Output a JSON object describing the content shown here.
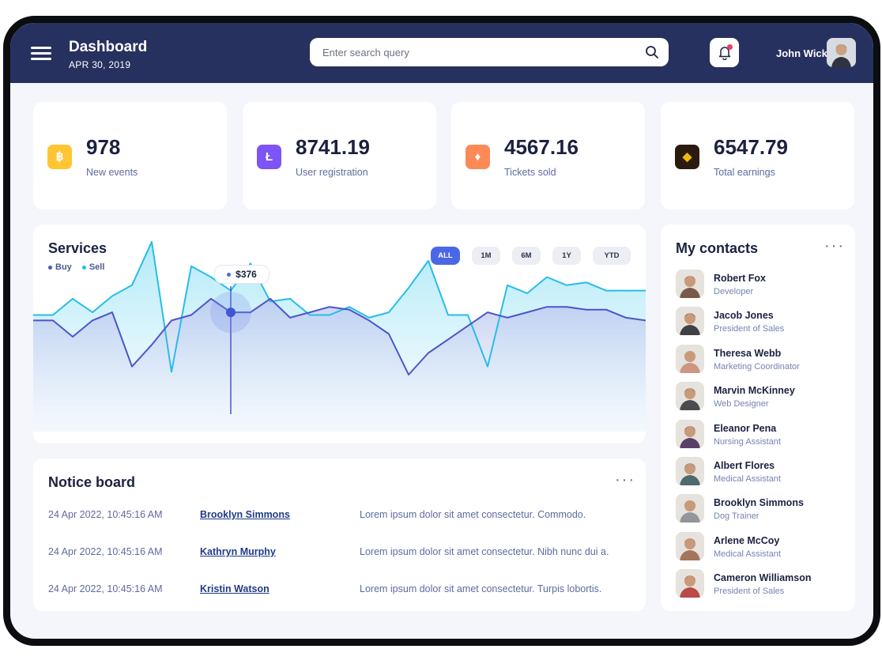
{
  "header": {
    "title": "Dashboard",
    "date": "APR 30, 2019",
    "search_placeholder": "Enter search query",
    "user_name": "John Wick",
    "colors": {
      "bar": "#27315f",
      "notification_dot": "#ef3a6a"
    }
  },
  "stats": [
    {
      "value": "978",
      "label": "New events",
      "icon": "bitcoin-icon",
      "color": "#ffc533",
      "glyph": "฿"
    },
    {
      "value": "8741.19",
      "label": "User registration",
      "icon": "litecoin-icon",
      "color": "#7d54f5",
      "glyph": "Ł"
    },
    {
      "value": "4567.16",
      "label": "Tickets sold",
      "icon": "ethereum-icon",
      "color": "#fb8a57",
      "glyph": "♦"
    },
    {
      "value": "6547.79",
      "label": "Total earnings",
      "icon": "binance-icon",
      "color": "#2b1b0e",
      "glyph": "◆"
    }
  ],
  "services": {
    "title": "Services",
    "legend": [
      {
        "label": "Buy",
        "color": "#4c55c7"
      },
      {
        "label": "Sell",
        "color": "#27bde8"
      }
    ],
    "ranges": [
      "ALL",
      "1M",
      "6M",
      "1Y",
      "YTD"
    ],
    "active_range": "ALL",
    "tooltip": "$376"
  },
  "chart_data": {
    "type": "area",
    "title": "Services",
    "x": [
      0,
      1,
      2,
      3,
      4,
      5,
      6,
      7,
      8,
      9,
      10,
      11,
      12,
      13,
      14,
      15,
      16,
      17,
      18,
      19,
      20,
      21,
      22,
      23,
      24,
      25,
      26,
      27,
      28,
      29,
      30,
      31
    ],
    "series": [
      {
        "name": "Sell",
        "values": [
          43,
          43,
          49,
          44,
          50,
          54,
          70,
          22,
          61,
          57,
          52,
          62,
          48,
          49,
          43,
          43,
          46,
          42,
          44,
          53,
          63,
          43,
          43,
          24,
          54,
          51,
          57,
          54,
          55,
          52,
          52,
          52
        ]
      },
      {
        "name": "Buy",
        "values": [
          41,
          41,
          35,
          41,
          44,
          24,
          32,
          41,
          43,
          49,
          44,
          44,
          49,
          42,
          44,
          46,
          45,
          41,
          36,
          21,
          29,
          34,
          39,
          44,
          42,
          44,
          46,
          46,
          45,
          45,
          42,
          41
        ]
      }
    ],
    "highlight": {
      "series": "Buy",
      "index": 10,
      "label": "$376"
    },
    "ylim": [
      0,
      100
    ],
    "grid": false
  },
  "notice": {
    "title": "Notice board",
    "rows": [
      {
        "date": "24 Apr 2022, 10:45:16 AM",
        "name": "Brooklyn Simmons",
        "message": "Lorem ipsum dolor sit amet consectetur. Commodo."
      },
      {
        "date": "24 Apr 2022, 10:45:16 AM",
        "name": "Kathryn Murphy",
        "message": "Lorem ipsum dolor sit amet consectetur. Nibh nunc dui a."
      },
      {
        "date": "24 Apr 2022, 10:45:16 AM",
        "name": "Kristin Watson",
        "message": "Lorem ipsum dolor sit amet consectetur. Turpis lobortis."
      }
    ]
  },
  "contacts": {
    "title": "My contacts",
    "items": [
      {
        "name": "Robert Fox",
        "role": "Developer",
        "avatar_color": "#6b4a3a"
      },
      {
        "name": "Jacob Jones",
        "role": "President of Sales",
        "avatar_color": "#2f2f33"
      },
      {
        "name": "Theresa Webb",
        "role": "Marketing Coordinator",
        "avatar_color": "#c98e78"
      },
      {
        "name": "Marvin McKinney",
        "role": "Web Designer",
        "avatar_color": "#3b3b3e"
      },
      {
        "name": "Eleanor Pena",
        "role": "Nursing Assistant",
        "avatar_color": "#4a2f5a"
      },
      {
        "name": "Albert Flores",
        "role": "Medical Assistant",
        "avatar_color": "#3e5c62"
      },
      {
        "name": "Brooklyn Simmons",
        "role": "Dog Trainer",
        "avatar_color": "#8a8d92"
      },
      {
        "name": "Arlene McCoy",
        "role": "Medical Assistant",
        "avatar_color": "#9b6a4c"
      },
      {
        "name": "Cameron Williamson",
        "role": "President of Sales",
        "avatar_color": "#b23a3a"
      }
    ]
  }
}
